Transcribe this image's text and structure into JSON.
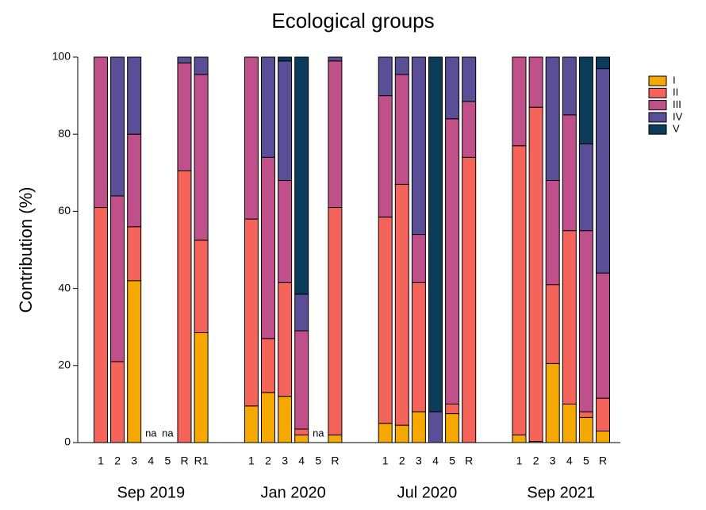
{
  "chart_data": {
    "type": "stacked-bar",
    "title": "Ecological groups",
    "ylabel": "Contribution (%)",
    "categories": [
      "1",
      "2",
      "3",
      "4",
      "5",
      "R",
      "R1",
      null,
      null,
      "1",
      "2",
      "3",
      "4",
      "5",
      "R",
      null,
      null,
      "1",
      "2",
      "3",
      "4",
      "5",
      "R",
      null,
      null,
      "1",
      "2",
      "3",
      "4",
      "5",
      "R"
    ],
    "groups": [
      "Sep 2019",
      "Jan 2020",
      "Jul 2020",
      "Sep 2021"
    ],
    "missing_label": "na",
    "series": [
      {
        "name": "I",
        "color": "#f5a800",
        "values": [
          0,
          0,
          42,
          null,
          null,
          0,
          28.5,
          null,
          null,
          9.5,
          13,
          12,
          2,
          null,
          2,
          null,
          null,
          5,
          4.5,
          8,
          0,
          7.5,
          0,
          null,
          null,
          2,
          0.3,
          20.5,
          10,
          6.5,
          3
        ]
      },
      {
        "name": "II",
        "color": "#f4645b",
        "values": [
          61,
          21,
          14,
          null,
          null,
          70.5,
          24,
          null,
          null,
          48.5,
          14,
          29.5,
          1.5,
          null,
          59,
          null,
          null,
          53.5,
          62.5,
          33.5,
          0,
          2.5,
          74,
          null,
          null,
          75,
          86.7,
          20.5,
          45,
          1.5,
          8.5
        ]
      },
      {
        "name": "III",
        "color": "#c0508a",
        "values": [
          39,
          43,
          24,
          null,
          null,
          28,
          43,
          null,
          null,
          42,
          47,
          26.5,
          25.5,
          null,
          38,
          null,
          null,
          31.5,
          28.5,
          12.5,
          0,
          74,
          14.5,
          null,
          null,
          23,
          13,
          27,
          30,
          47,
          32.5
        ]
      },
      {
        "name": "IV",
        "color": "#5a4e96",
        "values": [
          0,
          36,
          20,
          null,
          null,
          1.5,
          4.5,
          null,
          null,
          0,
          26,
          31,
          9.5,
          null,
          1,
          null,
          null,
          10,
          4.5,
          46,
          8,
          16,
          11.5,
          null,
          null,
          0,
          0,
          32,
          15,
          22.5,
          53
        ]
      },
      {
        "name": "V",
        "color": "#0b3d5a",
        "values": [
          0,
          0,
          0,
          null,
          null,
          0,
          0,
          null,
          null,
          0,
          0,
          1,
          61.5,
          null,
          0,
          null,
          null,
          0,
          0,
          0,
          92,
          0,
          0,
          null,
          null,
          0,
          0,
          0,
          0,
          22.5,
          3
        ]
      }
    ],
    "ylim": [
      0,
      100
    ],
    "yticks": [
      0,
      20,
      40,
      60,
      80,
      100
    ]
  }
}
